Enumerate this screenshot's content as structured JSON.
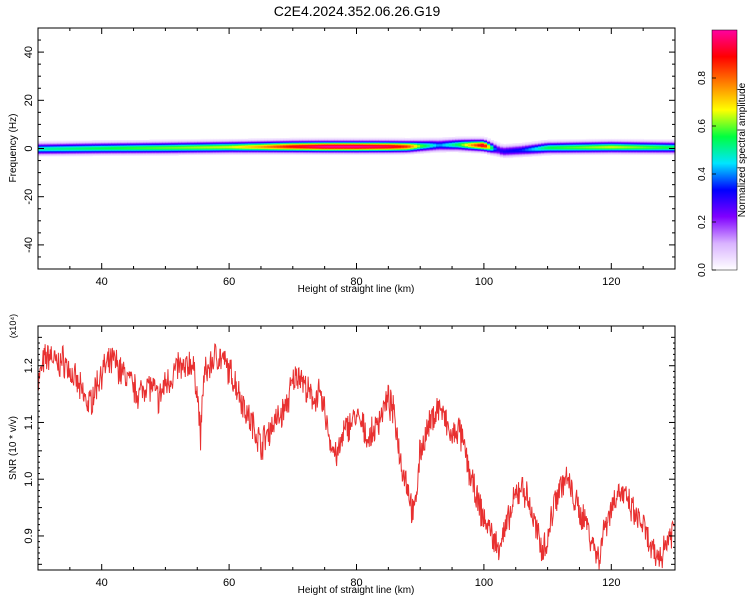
{
  "figure_title": "C2E4.2024.352.06.26.G19",
  "chart_data": [
    {
      "type": "heatmap",
      "title": "C2E4.2024.352.06.26.G19",
      "xlabel": "Height of straight line (km)",
      "ylabel": "Frequency (Hz)",
      "xlim": [
        30,
        130
      ],
      "ylim": [
        -50,
        50
      ],
      "xticks": [
        40,
        60,
        80,
        100,
        120
      ],
      "yticks": [
        -40,
        -20,
        0,
        20,
        40
      ],
      "colorbar": {
        "label": "Normalized spectral amplitude",
        "range": [
          0,
          1
        ],
        "ticks": [
          0.0,
          0.2,
          0.4,
          0.6,
          0.8
        ],
        "colormap": [
          "#ffffff",
          "#d9b3ff",
          "#8000ff",
          "#0000ff",
          "#00e5ff",
          "#00ff40",
          "#ffff00",
          "#ff8000",
          "#ff0000",
          "#ff00a0"
        ]
      },
      "band": {
        "center_hz": [
          [
            30,
            0
          ],
          [
            40,
            0.3
          ],
          [
            50,
            0.5
          ],
          [
            60,
            0.8
          ],
          [
            70,
            1
          ],
          [
            80,
            1
          ],
          [
            88,
            1
          ],
          [
            92,
            1.5
          ],
          [
            96,
            1.8
          ],
          [
            100,
            1.5
          ],
          [
            103,
            -1
          ],
          [
            106,
            -0.5
          ],
          [
            110,
            0.5
          ],
          [
            120,
            0.8
          ],
          [
            130,
            0.6
          ]
        ],
        "peak_amplitude": [
          [
            30,
            0.5
          ],
          [
            40,
            0.55
          ],
          [
            50,
            0.6
          ],
          [
            60,
            0.65
          ],
          [
            65,
            0.75
          ],
          [
            70,
            0.9
          ],
          [
            75,
            1
          ],
          [
            80,
            1
          ],
          [
            85,
            0.95
          ],
          [
            88,
            0.85
          ],
          [
            90,
            0.6
          ],
          [
            93,
            0.4
          ],
          [
            96,
            0.55
          ],
          [
            100,
            0.95
          ],
          [
            102,
            0.3
          ],
          [
            106,
            0.35
          ],
          [
            110,
            0.55
          ],
          [
            115,
            0.6
          ],
          [
            120,
            0.65
          ],
          [
            125,
            0.6
          ],
          [
            130,
            0.55
          ]
        ]
      }
    },
    {
      "type": "line",
      "xlabel": "Height of straight line (km)",
      "ylabel": "SNR (10 * v/v)",
      "y_exponent": "(x10⁴)",
      "xlim": [
        30,
        130
      ],
      "ylim": [
        0.84,
        1.27
      ],
      "xticks": [
        40,
        60,
        80,
        100,
        120
      ],
      "yticks": [
        0.9,
        1.0,
        1.1,
        1.2
      ],
      "color": "#e83030",
      "series": [
        {
          "x": [
            30,
            31,
            32,
            33,
            34,
            35,
            36,
            37,
            38,
            39,
            40,
            41,
            42,
            43,
            44,
            45,
            46,
            47,
            48,
            49,
            50,
            51,
            52,
            53,
            54,
            55,
            55.5,
            56,
            57,
            58,
            59,
            60,
            61,
            62,
            63,
            64,
            65,
            66,
            67,
            68,
            69,
            70,
            71,
            72,
            73,
            74,
            75,
            76,
            77,
            78,
            79,
            80,
            81,
            82,
            83,
            84,
            85,
            86,
            87,
            88,
            89,
            90,
            91,
            92,
            93,
            94,
            95,
            96,
            97,
            98,
            99,
            100,
            101,
            102,
            103,
            104,
            105,
            106,
            107,
            108,
            109,
            110,
            111,
            112,
            113,
            114,
            115,
            116,
            117,
            118,
            119,
            120,
            121,
            122,
            123,
            124,
            125,
            126,
            127,
            128,
            129,
            130
          ],
          "y": [
            1.17,
            1.21,
            1.22,
            1.2,
            1.21,
            1.19,
            1.17,
            1.15,
            1.13,
            1.16,
            1.19,
            1.2,
            1.21,
            1.19,
            1.18,
            1.16,
            1.15,
            1.17,
            1.16,
            1.14,
            1.17,
            1.18,
            1.2,
            1.19,
            1.21,
            1.16,
            1.07,
            1.18,
            1.2,
            1.22,
            1.21,
            1.19,
            1.17,
            1.14,
            1.11,
            1.09,
            1.06,
            1.08,
            1.1,
            1.11,
            1.13,
            1.17,
            1.19,
            1.16,
            1.14,
            1.15,
            1.12,
            1.06,
            1.04,
            1.08,
            1.1,
            1.11,
            1.09,
            1.07,
            1.09,
            1.12,
            1.14,
            1.11,
            1.03,
            0.99,
            0.93,
            1.05,
            1.08,
            1.11,
            1.13,
            1.1,
            1.07,
            1.09,
            1.05,
            1.0,
            0.96,
            0.93,
            0.91,
            0.88,
            0.9,
            0.93,
            0.97,
            0.99,
            0.96,
            0.92,
            0.88,
            0.89,
            0.96,
            0.99,
            1.0,
            0.97,
            0.94,
            0.93,
            0.89,
            0.86,
            0.92,
            0.95,
            0.98,
            0.97,
            0.95,
            0.93,
            0.92,
            0.88,
            0.86,
            0.87,
            0.9,
            0.92
          ]
        }
      ]
    }
  ]
}
